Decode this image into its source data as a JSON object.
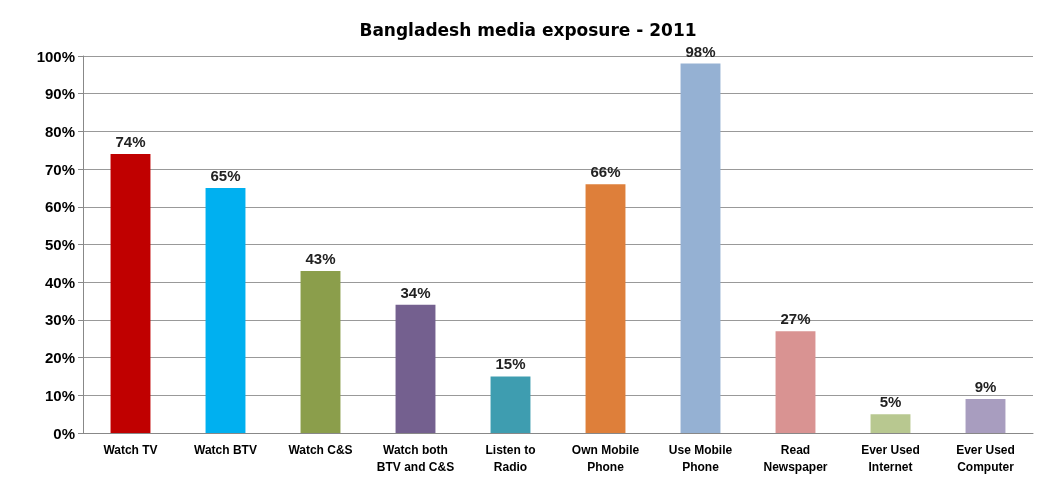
{
  "chart_data": {
    "type": "bar",
    "title": "Bangladesh media exposure - 2011",
    "categories": [
      "Watch TV",
      "Watch BTV",
      "Watch C&S",
      "Watch both\nBTV and C&S",
      "Listen to\nRadio",
      "Own Mobile\nPhone",
      "Use Mobile\nPhone",
      "Read\nNewspaper",
      "Ever Used\nInternet",
      "Ever Used\nComputer"
    ],
    "values": [
      74,
      65,
      43,
      34,
      15,
      66,
      98,
      27,
      5,
      9
    ],
    "value_labels": [
      "74%",
      "65%",
      "43%",
      "34%",
      "15%",
      "66%",
      "98%",
      "27%",
      "5%",
      "9%"
    ],
    "colors": [
      "#c00000",
      "#00b0f0",
      "#8b9e4b",
      "#74608f",
      "#3e9db0",
      "#de7f3a",
      "#95b1d3",
      "#d99392",
      "#b8c890",
      "#a89dbf"
    ],
    "ylim": [
      0,
      100
    ],
    "yticks": [
      {
        "value": 0,
        "label": "0%"
      },
      {
        "value": 10,
        "label": "10%"
      },
      {
        "value": 20,
        "label": "20%"
      },
      {
        "value": 30,
        "label": "30%"
      },
      {
        "value": 40,
        "label": "40%"
      },
      {
        "value": 50,
        "label": "50%"
      },
      {
        "value": 60,
        "label": "60%"
      },
      {
        "value": 70,
        "label": "70%"
      },
      {
        "value": 80,
        "label": "80%"
      },
      {
        "value": 90,
        "label": "90%"
      },
      {
        "value": 100,
        "label": "100%"
      }
    ],
    "grid": "y"
  }
}
